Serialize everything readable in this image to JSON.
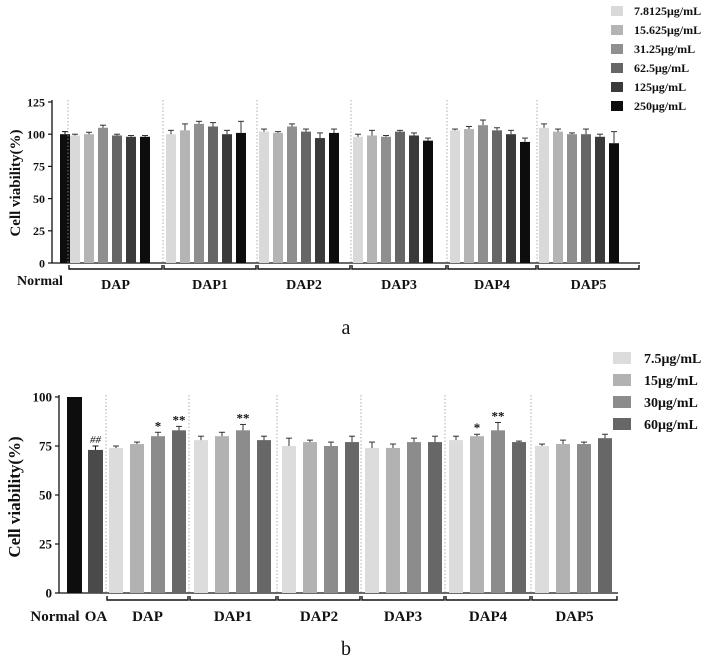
{
  "chart_data": [
    {
      "panel_label": "a",
      "type": "bar",
      "ylabel": "Cell viability(%)",
      "ylim": [
        0,
        125
      ],
      "yticks": [
        0,
        25,
        50,
        75,
        100,
        125
      ],
      "legend_position": "top-right",
      "colors": [
        "#d9d9d9",
        "#b4b4b4",
        "#8f8f8f",
        "#666666",
        "#3a3a3a",
        "#0d0d0d"
      ],
      "series": [
        {
          "name": "7.8125μg/mL"
        },
        {
          "name": "15.625μg/mL"
        },
        {
          "name": "31.25μg/mL"
        },
        {
          "name": "62.5μg/mL"
        },
        {
          "name": "125μg/mL"
        },
        {
          "name": "250μg/mL"
        }
      ],
      "controls": [
        {
          "label": "Normal",
          "value": 100,
          "error": 2,
          "color": "#0d0d0d"
        }
      ],
      "groups": [
        {
          "name": "DAP",
          "values": [
            99,
            100,
            105,
            99,
            98,
            98
          ],
          "errors": [
            1,
            1.5,
            2,
            1,
            1,
            1
          ]
        },
        {
          "name": "DAP1",
          "values": [
            100,
            103,
            108,
            106,
            100,
            101
          ],
          "errors": [
            3,
            5,
            2,
            3,
            3,
            9
          ]
        },
        {
          "name": "DAP2",
          "values": [
            102,
            101,
            106,
            102,
            97,
            101
          ],
          "errors": [
            2,
            1,
            2,
            2,
            4,
            3
          ]
        },
        {
          "name": "DAP3",
          "values": [
            98,
            99,
            98,
            102,
            99,
            95
          ],
          "errors": [
            2,
            4,
            1,
            1,
            2,
            2
          ]
        },
        {
          "name": "DAP4",
          "values": [
            103,
            104,
            107,
            103,
            100,
            94
          ],
          "errors": [
            1,
            2,
            4,
            2,
            3,
            3
          ]
        },
        {
          "name": "DAP5",
          "values": [
            105,
            102,
            100,
            100,
            98,
            93
          ],
          "errors": [
            3,
            2,
            1,
            4,
            2,
            9
          ]
        }
      ]
    },
    {
      "panel_label": "b",
      "type": "bar",
      "ylabel": "Cell viability(%)",
      "ylim": [
        0,
        100
      ],
      "yticks": [
        0,
        25,
        50,
        75,
        100
      ],
      "legend_position": "top-right",
      "colors": [
        "#dcdcdc",
        "#b2b2b2",
        "#8c8c8c",
        "#676767"
      ],
      "series": [
        {
          "name": "7.5μg/mL"
        },
        {
          "name": "15μg/mL"
        },
        {
          "name": "30μg/mL"
        },
        {
          "name": "60μg/mL"
        }
      ],
      "controls": [
        {
          "label": "Normal",
          "value": 100,
          "error": 0,
          "color": "#0d0d0d"
        },
        {
          "label": "OA",
          "value": 73,
          "error": 2,
          "color": "#4a4a4a",
          "annotation": "##"
        }
      ],
      "groups": [
        {
          "name": "DAP",
          "values": [
            74,
            76,
            80,
            83
          ],
          "errors": [
            1,
            1,
            2,
            2
          ],
          "annotations": [
            "",
            "",
            "*",
            "**"
          ]
        },
        {
          "name": "DAP1",
          "values": [
            78,
            80,
            83,
            78
          ],
          "errors": [
            2,
            2,
            3,
            2
          ],
          "annotations": [
            "",
            "",
            "**",
            ""
          ]
        },
        {
          "name": "DAP2",
          "values": [
            75,
            77,
            75,
            77
          ],
          "errors": [
            4,
            1,
            2,
            3
          ],
          "annotations": [
            "",
            "",
            "",
            ""
          ]
        },
        {
          "name": "DAP3",
          "values": [
            74,
            74,
            77,
            77
          ],
          "errors": [
            3,
            2,
            2,
            3
          ],
          "annotations": [
            "",
            "",
            "",
            ""
          ]
        },
        {
          "name": "DAP4",
          "values": [
            78,
            80,
            83,
            77
          ],
          "errors": [
            2,
            1,
            4,
            0.5
          ],
          "annotations": [
            "",
            "*",
            "**",
            ""
          ]
        },
        {
          "name": "DAP5",
          "values": [
            75,
            76,
            76,
            79
          ],
          "errors": [
            1,
            2,
            1,
            2
          ],
          "annotations": [
            "",
            "",
            "",
            ""
          ]
        }
      ]
    }
  ]
}
